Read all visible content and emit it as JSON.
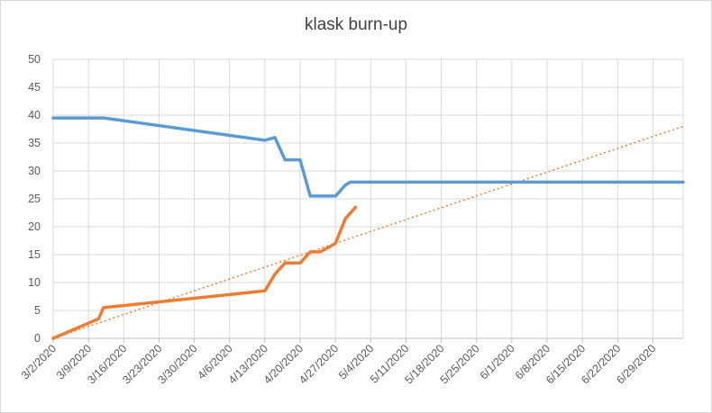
{
  "chart_data": {
    "type": "line",
    "title": "klask burn-up",
    "xlabel": "",
    "ylabel": "",
    "x_tick_labels": [
      "3/2/2020",
      "3/9/2020",
      "3/16/2020",
      "3/23/2020",
      "3/30/2020",
      "4/6/2020",
      "4/13/2020",
      "4/20/2020",
      "4/27/2020",
      "5/4/2020",
      "5/11/2020",
      "5/18/2020",
      "5/25/2020",
      "6/1/2020",
      "6/8/2020",
      "6/15/2020",
      "6/22/2020",
      "6/29/2020"
    ],
    "x_range": [
      "3/2/2020",
      "7/5/2020"
    ],
    "ylim": [
      0,
      50
    ],
    "y_ticks": [
      0,
      5,
      10,
      15,
      20,
      25,
      30,
      35,
      40,
      45,
      50
    ],
    "grid": true,
    "legend": "none",
    "series": [
      {
        "color": "#5b9bd5",
        "points": [
          {
            "x": "3/2/2020",
            "y": 39.5
          },
          {
            "x": "3/12/2020",
            "y": 39.5
          },
          {
            "x": "4/13/2020",
            "y": 35.5
          },
          {
            "x": "4/15/2020",
            "y": 36
          },
          {
            "x": "4/17/2020",
            "y": 32
          },
          {
            "x": "4/20/2020",
            "y": 32
          },
          {
            "x": "4/22/2020",
            "y": 25.5
          },
          {
            "x": "4/27/2020",
            "y": 25.5
          },
          {
            "x": "4/29/2020",
            "y": 27.5
          },
          {
            "x": "4/30/2020",
            "y": 28
          },
          {
            "x": "7/5/2020",
            "y": 28
          }
        ]
      },
      {
        "color": "#ed7d31",
        "points": [
          {
            "x": "3/2/2020",
            "y": 0
          },
          {
            "x": "3/11/2020",
            "y": 3.5
          },
          {
            "x": "3/12/2020",
            "y": 5.5
          },
          {
            "x": "4/13/2020",
            "y": 8.5
          },
          {
            "x": "4/15/2020",
            "y": 11.5
          },
          {
            "x": "4/17/2020",
            "y": 13.5
          },
          {
            "x": "4/20/2020",
            "y": 13.5
          },
          {
            "x": "4/22/2020",
            "y": 15.5
          },
          {
            "x": "4/24/2020",
            "y": 15.5
          },
          {
            "x": "4/27/2020",
            "y": 17
          },
          {
            "x": "4/29/2020",
            "y": 21.5
          },
          {
            "x": "5/1/2020",
            "y": 23.5
          }
        ]
      }
    ],
    "trendline": {
      "style": "dotted",
      "color": "#ed7d31",
      "points": [
        {
          "x": "3/2/2020",
          "y": 0
        },
        {
          "x": "7/5/2020",
          "y": 38
        }
      ]
    }
  }
}
